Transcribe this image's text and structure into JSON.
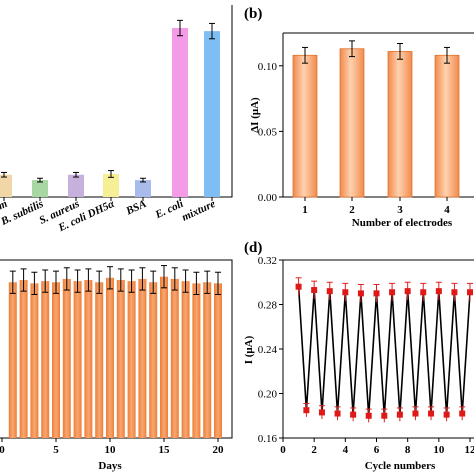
{
  "panels": {
    "b": "(b)",
    "d": "(d)"
  },
  "chart_data": [
    {
      "id": "a",
      "type": "bar",
      "categories": [
        "S. typhimurium",
        "B. subtilis",
        "S. aureus",
        "E. coli DH5α",
        "BSA",
        "E. coli",
        "mixture"
      ],
      "category_display": [
        "imurium",
        "B. subtilis",
        "S. aureus",
        "E. coli DH5α",
        "BSA",
        "E. coli",
        "mixture"
      ],
      "values": [
        0.0145,
        0.011,
        0.0145,
        0.015,
        0.011,
        0.11,
        0.108
      ],
      "errors": [
        0.0015,
        0.0012,
        0.0015,
        0.0022,
        0.0012,
        0.005,
        0.005
      ],
      "colors": [
        "#f1d6a8",
        "#a9d7a4",
        "#c8b0dd",
        "#f7ef95",
        "#a8bcec",
        "#f49be8",
        "#7fbef2"
      ],
      "ylim": [
        0,
        0.125
      ]
    },
    {
      "id": "b",
      "type": "bar",
      "categories": [
        "1",
        "2",
        "3",
        "4"
      ],
      "values": [
        0.108,
        0.113,
        0.111,
        0.108
      ],
      "errors": [
        0.006,
        0.006,
        0.006,
        0.006
      ],
      "ylim": [
        0,
        0.125
      ],
      "yticks": [
        "0.00",
        "0.05",
        "0.10"
      ],
      "xlabel": "Number of electrodes",
      "ylabel": "ΔI (μA)"
    },
    {
      "id": "c",
      "type": "bar",
      "x": [
        1,
        2,
        3,
        4,
        5,
        6,
        7,
        8,
        9,
        10,
        11,
        12,
        13,
        14,
        15,
        16,
        17,
        18,
        19,
        20
      ],
      "values": [
        0.3,
        0.302,
        0.299,
        0.301,
        0.3,
        0.303,
        0.301,
        0.302,
        0.3,
        0.304,
        0.302,
        0.301,
        0.303,
        0.3,
        0.305,
        0.303,
        0.301,
        0.299,
        0.3,
        0.299
      ],
      "errors": [
        0.01,
        0.01,
        0.01,
        0.01,
        0.01,
        0.01,
        0.01,
        0.01,
        0.01,
        0.01,
        0.01,
        0.01,
        0.01,
        0.01,
        0.01,
        0.01,
        0.01,
        0.01,
        0.01,
        0.01
      ],
      "ylim": [
        0.16,
        0.32
      ],
      "xticks": [
        "0",
        "5",
        "10",
        "15",
        "20"
      ],
      "xlabel": "Days"
    },
    {
      "id": "d",
      "type": "line",
      "x": [
        1,
        1.5,
        2,
        2.5,
        3,
        3.5,
        4,
        4.5,
        5,
        5.5,
        6,
        6.5,
        7,
        7.5,
        8,
        8.5,
        9,
        9.5,
        10,
        10.5,
        11,
        11.5,
        12
      ],
      "values": [
        0.296,
        0.185,
        0.293,
        0.183,
        0.292,
        0.182,
        0.291,
        0.181,
        0.29,
        0.18,
        0.29,
        0.18,
        0.291,
        0.181,
        0.292,
        0.182,
        0.291,
        0.182,
        0.292,
        0.181,
        0.291,
        0.182,
        0.291
      ],
      "errors": [
        0.008,
        0.006,
        0.008,
        0.006,
        0.008,
        0.006,
        0.008,
        0.006,
        0.008,
        0.006,
        0.008,
        0.006,
        0.008,
        0.006,
        0.008,
        0.006,
        0.008,
        0.006,
        0.008,
        0.006,
        0.008,
        0.006,
        0.008
      ],
      "ylim": [
        0.16,
        0.32
      ],
      "yticks": [
        "0.16",
        "0.20",
        "0.24",
        "0.28",
        "0.32"
      ],
      "xticks": [
        "0",
        "2",
        "4",
        "6",
        "8",
        "10",
        "12"
      ],
      "xlabel": "Cycle numbers",
      "ylabel": "I (μA)"
    }
  ]
}
